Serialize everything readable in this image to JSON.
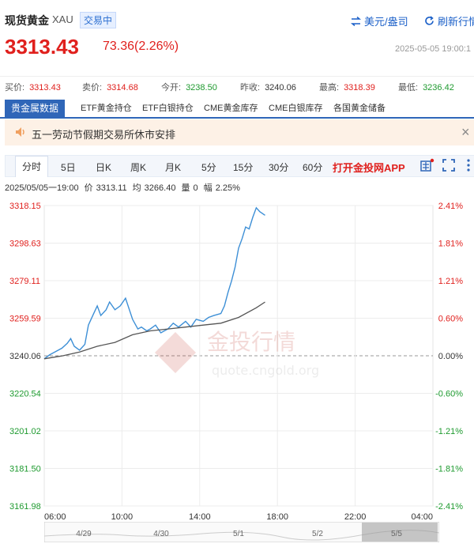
{
  "header": {
    "title": "现货黄金",
    "code": "XAU",
    "status": "交易中",
    "currency_link": "美元/盎司",
    "refresh_link": "刷新行情",
    "price": "3313.43",
    "change": "73.36(2.26%)",
    "datetime": "2025-05-05 19:00:1"
  },
  "quote": [
    {
      "label": "买价:",
      "value": "3313.43",
      "color": "red"
    },
    {
      "label": "卖价:",
      "value": "3314.68",
      "color": "red"
    },
    {
      "label": "今开:",
      "value": "3238.50",
      "color": "green"
    },
    {
      "label": "昨收:",
      "value": "3240.06",
      "color": "dark"
    },
    {
      "label": "最高:",
      "value": "3318.39",
      "color": "red"
    },
    {
      "label": "最低:",
      "value": "3236.42",
      "color": "green"
    }
  ],
  "tabs1": [
    "贵金属数据",
    "ETF黄金持仓",
    "ETF白银持仓",
    "CME黄金库存",
    "CME白银库存",
    "各国黄金储备"
  ],
  "notice": "五一劳动节假期交易所休市安排",
  "tabs2": [
    "分时",
    "5日",
    "日K",
    "周K",
    "月K",
    "5分",
    "15分",
    "30分",
    "60分"
  ],
  "app_link": "打开金投网APP",
  "chart_info": {
    "time": "2025/05/05一19:00",
    "price_label": "价",
    "price": "3313.11",
    "avg_label": "均",
    "avg": "3266.40",
    "volume_label": "量",
    "volume": "0",
    "amp_label": "幅",
    "amp": "2.25%"
  },
  "watermark": {
    "name": "金投行情",
    "url": "quote.cngold.org"
  },
  "colors": {
    "up": "#e0201d",
    "down": "#1e9a2f",
    "price_line": "#3d8fd6",
    "avg_line": "#555555",
    "accent": "#2f66b8"
  },
  "chart_data": {
    "type": "line",
    "y_ticks": [
      "3318.15",
      "3298.63",
      "3279.11",
      "3259.59",
      "3240.06",
      "3220.54",
      "3201.02",
      "3181.50",
      "3161.98"
    ],
    "pct_ticks": [
      "2.41%",
      "1.81%",
      "1.21%",
      "0.60%",
      "0.00%",
      "-0.60%",
      "-1.21%",
      "-1.81%",
      "-2.41%"
    ],
    "x_ticks": [
      "06:00",
      "10:00",
      "14:00",
      "18:00",
      "22:00",
      "04:00"
    ],
    "ylim": [
      3161.98,
      3318.15
    ],
    "prev_close": 3240.06,
    "x_range_hours": [
      6,
      28
    ],
    "series": [
      {
        "x": [
          6.0,
          6.3,
          6.6,
          7.0,
          7.3,
          7.5,
          7.7,
          8.0,
          8.3,
          8.5,
          8.8,
          9.0,
          9.2,
          9.5,
          9.7,
          10.0,
          10.3,
          10.6,
          11.0,
          11.3,
          11.5,
          11.8,
          12.0,
          12.3,
          12.6,
          13.0,
          13.3,
          13.6,
          14.0,
          14.3,
          14.6,
          15.0,
          15.3,
          15.6,
          16.0,
          16.2,
          16.4,
          16.6,
          16.8,
          17.0,
          17.2,
          17.4,
          17.6,
          17.8,
          18.0,
          18.2,
          18.5
        ],
        "values": [
          3238.5,
          3240.5,
          3242.0,
          3244.0,
          3246.5,
          3249.0,
          3245.0,
          3243.0,
          3246.0,
          3256.0,
          3262.0,
          3266.0,
          3261.0,
          3264.0,
          3268.0,
          3264.0,
          3266.0,
          3270.0,
          3259.0,
          3254.0,
          3255.0,
          3253.0,
          3254.0,
          3256.0,
          3252.0,
          3254.0,
          3257.0,
          3255.0,
          3258.0,
          3255.0,
          3259.0,
          3258.0,
          3260.0,
          3261.0,
          3262.0,
          3266.0,
          3273.0,
          3279.0,
          3286.0,
          3296.0,
          3301.0,
          3307.0,
          3306.0,
          3312.0,
          3317.0,
          3315.0,
          3313.11
        ]
      },
      {
        "x": [
          6.0,
          7.0,
          8.0,
          9.0,
          10.0,
          11.0,
          12.0,
          13.0,
          14.0,
          15.0,
          16.0,
          17.0,
          18.0,
          18.5
        ],
        "values": [
          3238.5,
          3240.0,
          3242.0,
          3245.0,
          3247.0,
          3251.0,
          3253.0,
          3254.0,
          3255.0,
          3256.0,
          3257.0,
          3260.0,
          3265.0,
          3268.0
        ]
      }
    ],
    "nav_labels": [
      "4/29",
      "4/30",
      "5/1",
      "5/2",
      "5/5"
    ]
  }
}
